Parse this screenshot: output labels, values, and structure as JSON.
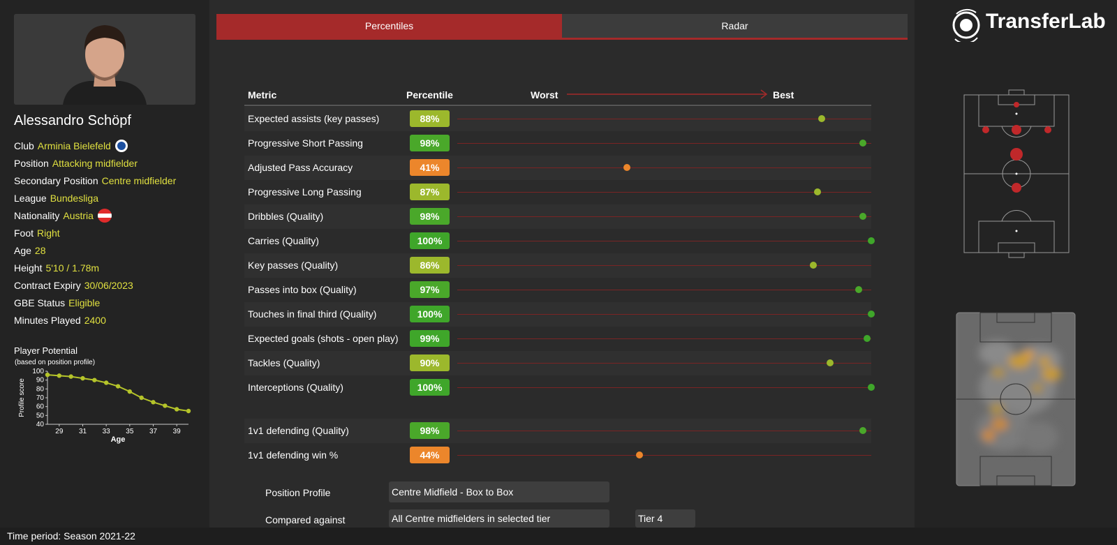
{
  "player": {
    "name": "Alessandro Schöpf",
    "info": [
      {
        "label": "Club",
        "value": "Arminia Bielefeld",
        "icon": "club-badge-icon"
      },
      {
        "label": "Position",
        "value": "Attacking midfielder"
      },
      {
        "label": "Secondary Position",
        "value": "Centre midfielder"
      },
      {
        "label": "League",
        "value": "Bundesliga"
      },
      {
        "label": "Nationality",
        "value": "Austria",
        "icon": "austria-flag-icon"
      },
      {
        "label": "Foot",
        "value": "Right"
      },
      {
        "label": "Age",
        "value": "28"
      },
      {
        "label": "Height",
        "value": "5'10 / 1.78m"
      },
      {
        "label": "Contract Expiry",
        "value": "30/06/2023"
      },
      {
        "label": "GBE Status",
        "value": "Eligible"
      },
      {
        "label": "Minutes Played",
        "value": "2400"
      }
    ]
  },
  "potential": {
    "title": "Player Potential",
    "subtitle": "(based on position profile)",
    "chart_data": {
      "type": "line",
      "x": [
        28,
        29,
        30,
        31,
        32,
        33,
        34,
        35,
        36,
        37,
        38,
        39,
        40
      ],
      "y": [
        96,
        95,
        94,
        92,
        90,
        87,
        83,
        77,
        70,
        65,
        61,
        57,
        55
      ],
      "xlabel": "Age",
      "ylabel": "Profile score",
      "xticks": [
        29,
        31,
        33,
        35,
        37,
        39
      ],
      "yticks": [
        40,
        50,
        60,
        70,
        80,
        90,
        100
      ],
      "ylim": [
        40,
        100
      ],
      "xlim": [
        28,
        40
      ],
      "color": "#b5c42a"
    }
  },
  "tabs": [
    {
      "label": "Percentiles",
      "active": true
    },
    {
      "label": "Radar",
      "active": false
    }
  ],
  "table": {
    "headers": {
      "metric": "Metric",
      "percentile": "Percentile",
      "worst": "Worst",
      "best": "Best"
    },
    "rows": [
      {
        "metric": "Expected assists (key passes)",
        "value": 88,
        "label": "88%",
        "color": "#9cb82c"
      },
      {
        "metric": "Progressive Short Passing",
        "value": 98,
        "label": "98%",
        "color": "#4aa82a"
      },
      {
        "metric": "Adjusted Pass Accuracy",
        "value": 41,
        "label": "41%",
        "color": "#ec862b"
      },
      {
        "metric": "Progressive Long Passing",
        "value": 87,
        "label": "87%",
        "color": "#9cb82c"
      },
      {
        "metric": "Dribbles (Quality)",
        "value": 98,
        "label": "98%",
        "color": "#4aa82a"
      },
      {
        "metric": "Carries (Quality)",
        "value": 100,
        "label": "100%",
        "color": "#3fa62a"
      },
      {
        "metric": "Key passes (Quality)",
        "value": 86,
        "label": "86%",
        "color": "#9cb82c"
      },
      {
        "metric": "Passes into box (Quality)",
        "value": 97,
        "label": "97%",
        "color": "#4aa82a"
      },
      {
        "metric": "Touches in final third (Quality)",
        "value": 100,
        "label": "100%",
        "color": "#3fa62a"
      },
      {
        "metric": "Expected goals (shots - open play)",
        "value": 99,
        "label": "99%",
        "color": "#3fa62a"
      },
      {
        "metric": "Tackles (Quality)",
        "value": 90,
        "label": "90%",
        "color": "#9cb82c"
      },
      {
        "metric": "Interceptions (Quality)",
        "value": 100,
        "label": "100%",
        "color": "#3fa62a"
      },
      {
        "gap": true
      },
      {
        "metric": "1v1 defending (Quality)",
        "value": 98,
        "label": "98%",
        "color": "#4aa82a"
      },
      {
        "metric": "1v1 defending win %",
        "value": 44,
        "label": "44%",
        "color": "#ec862b"
      }
    ]
  },
  "profile": {
    "position_label": "Position Profile",
    "position_value": "Centre Midfield - Box to Box",
    "compared_label": "Compared against",
    "compared_value": "All Centre midfielders in selected tier",
    "tier_value": "Tier 4"
  },
  "brand": {
    "name": "TransferLab",
    "icon": "transferlab-logo-icon"
  },
  "footer": {
    "time_period": "Time period: Season 2021-22"
  },
  "colors": {
    "accent": "#a52a2a",
    "highlight": "#e0e040"
  }
}
